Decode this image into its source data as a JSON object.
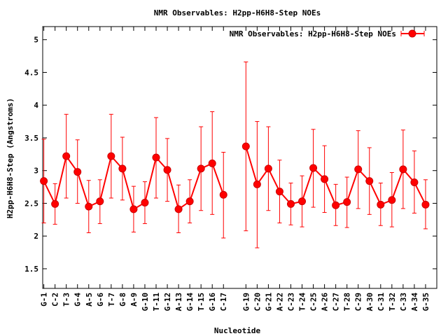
{
  "chart_data": {
    "type": "line",
    "title": "NMR Observables: H2pp-H6H8-Step NOEs",
    "xlabel": "Nucleotide",
    "ylabel": "H2pp-H6H8-Step (Angstroms)",
    "ylim": [
      1.2,
      5.2
    ],
    "yticks": [
      1.5,
      2,
      2.5,
      3,
      3.5,
      4,
      4.5,
      5
    ],
    "ytick_labels": [
      "1.5",
      "2",
      "2.5",
      "3",
      "3.5",
      "4",
      "4.5",
      "5"
    ],
    "grid": false,
    "legend_position": "top-right",
    "series": [
      {
        "name": "NMR Observables: H2pp-H6H8-Step NOEs",
        "color": "#ff0000",
        "points": [
          {
            "label": "G-1",
            "slot": 1,
            "value": 2.84,
            "low": 2.2,
            "high": 3.48
          },
          {
            "label": "C-2",
            "slot": 2,
            "value": 2.49,
            "low": 2.18,
            "high": 2.8
          },
          {
            "label": "T-3",
            "slot": 3,
            "value": 3.22,
            "low": 2.58,
            "high": 3.86
          },
          {
            "label": "G-4",
            "slot": 4,
            "value": 2.98,
            "low": 2.5,
            "high": 3.47
          },
          {
            "label": "A-5",
            "slot": 5,
            "value": 2.45,
            "low": 2.05,
            "high": 2.85
          },
          {
            "label": "G-6",
            "slot": 6,
            "value": 2.53,
            "low": 2.19,
            "high": 2.86
          },
          {
            "label": "T-7",
            "slot": 7,
            "value": 3.22,
            "low": 2.58,
            "high": 3.86
          },
          {
            "label": "G-8",
            "slot": 8,
            "value": 3.03,
            "low": 2.55,
            "high": 3.51
          },
          {
            "label": "A-9",
            "slot": 9,
            "value": 2.41,
            "low": 2.06,
            "high": 2.76
          },
          {
            "label": "G-10",
            "slot": 10,
            "value": 2.51,
            "low": 2.19,
            "high": 2.83
          },
          {
            "label": "T-11",
            "slot": 11,
            "value": 3.2,
            "low": 2.58,
            "high": 3.81
          },
          {
            "label": "G-12",
            "slot": 12,
            "value": 3.01,
            "low": 2.53,
            "high": 3.49
          },
          {
            "label": "A-13",
            "slot": 13,
            "value": 2.41,
            "low": 2.05,
            "high": 2.78
          },
          {
            "label": "G-14",
            "slot": 14,
            "value": 2.53,
            "low": 2.2,
            "high": 2.86
          },
          {
            "label": "T-15",
            "slot": 15,
            "value": 3.03,
            "low": 2.39,
            "high": 3.67
          },
          {
            "label": "G-16",
            "slot": 16,
            "value": 3.11,
            "low": 2.33,
            "high": 3.9
          },
          {
            "label": "C-17",
            "slot": 17,
            "value": 2.63,
            "low": 1.97,
            "high": 3.28
          },
          {
            "label": "G-19",
            "slot": 19,
            "value": 3.37,
            "low": 2.08,
            "high": 4.66
          },
          {
            "label": "C-20",
            "slot": 20,
            "value": 2.79,
            "low": 1.82,
            "high": 3.75
          },
          {
            "label": "G-21",
            "slot": 21,
            "value": 3.03,
            "low": 2.39,
            "high": 3.67
          },
          {
            "label": "A-22",
            "slot": 22,
            "value": 2.68,
            "low": 2.2,
            "high": 3.16
          },
          {
            "label": "C-23",
            "slot": 23,
            "value": 2.49,
            "low": 2.17,
            "high": 2.81
          },
          {
            "label": "T-24",
            "slot": 24,
            "value": 2.53,
            "low": 2.14,
            "high": 2.92
          },
          {
            "label": "C-25",
            "slot": 25,
            "value": 3.04,
            "low": 2.44,
            "high": 3.63
          },
          {
            "label": "A-26",
            "slot": 26,
            "value": 2.87,
            "low": 2.36,
            "high": 3.38
          },
          {
            "label": "C-27",
            "slot": 27,
            "value": 2.47,
            "low": 2.16,
            "high": 2.79
          },
          {
            "label": "T-28",
            "slot": 28,
            "value": 2.52,
            "low": 2.13,
            "high": 2.9
          },
          {
            "label": "C-29",
            "slot": 29,
            "value": 3.02,
            "low": 2.42,
            "high": 3.61
          },
          {
            "label": "A-30",
            "slot": 30,
            "value": 2.84,
            "low": 2.33,
            "high": 3.35
          },
          {
            "label": "C-31",
            "slot": 31,
            "value": 2.48,
            "low": 2.16,
            "high": 2.81
          },
          {
            "label": "T-32",
            "slot": 32,
            "value": 2.55,
            "low": 2.14,
            "high": 2.97
          },
          {
            "label": "C-33",
            "slot": 33,
            "value": 3.02,
            "low": 2.42,
            "high": 3.62
          },
          {
            "label": "A-34",
            "slot": 34,
            "value": 2.82,
            "low": 2.35,
            "high": 3.3
          },
          {
            "label": "G-35",
            "slot": 35,
            "value": 2.48,
            "low": 2.11,
            "high": 2.86
          }
        ]
      }
    ],
    "xlim": [
      0.9,
      36.0
    ]
  }
}
